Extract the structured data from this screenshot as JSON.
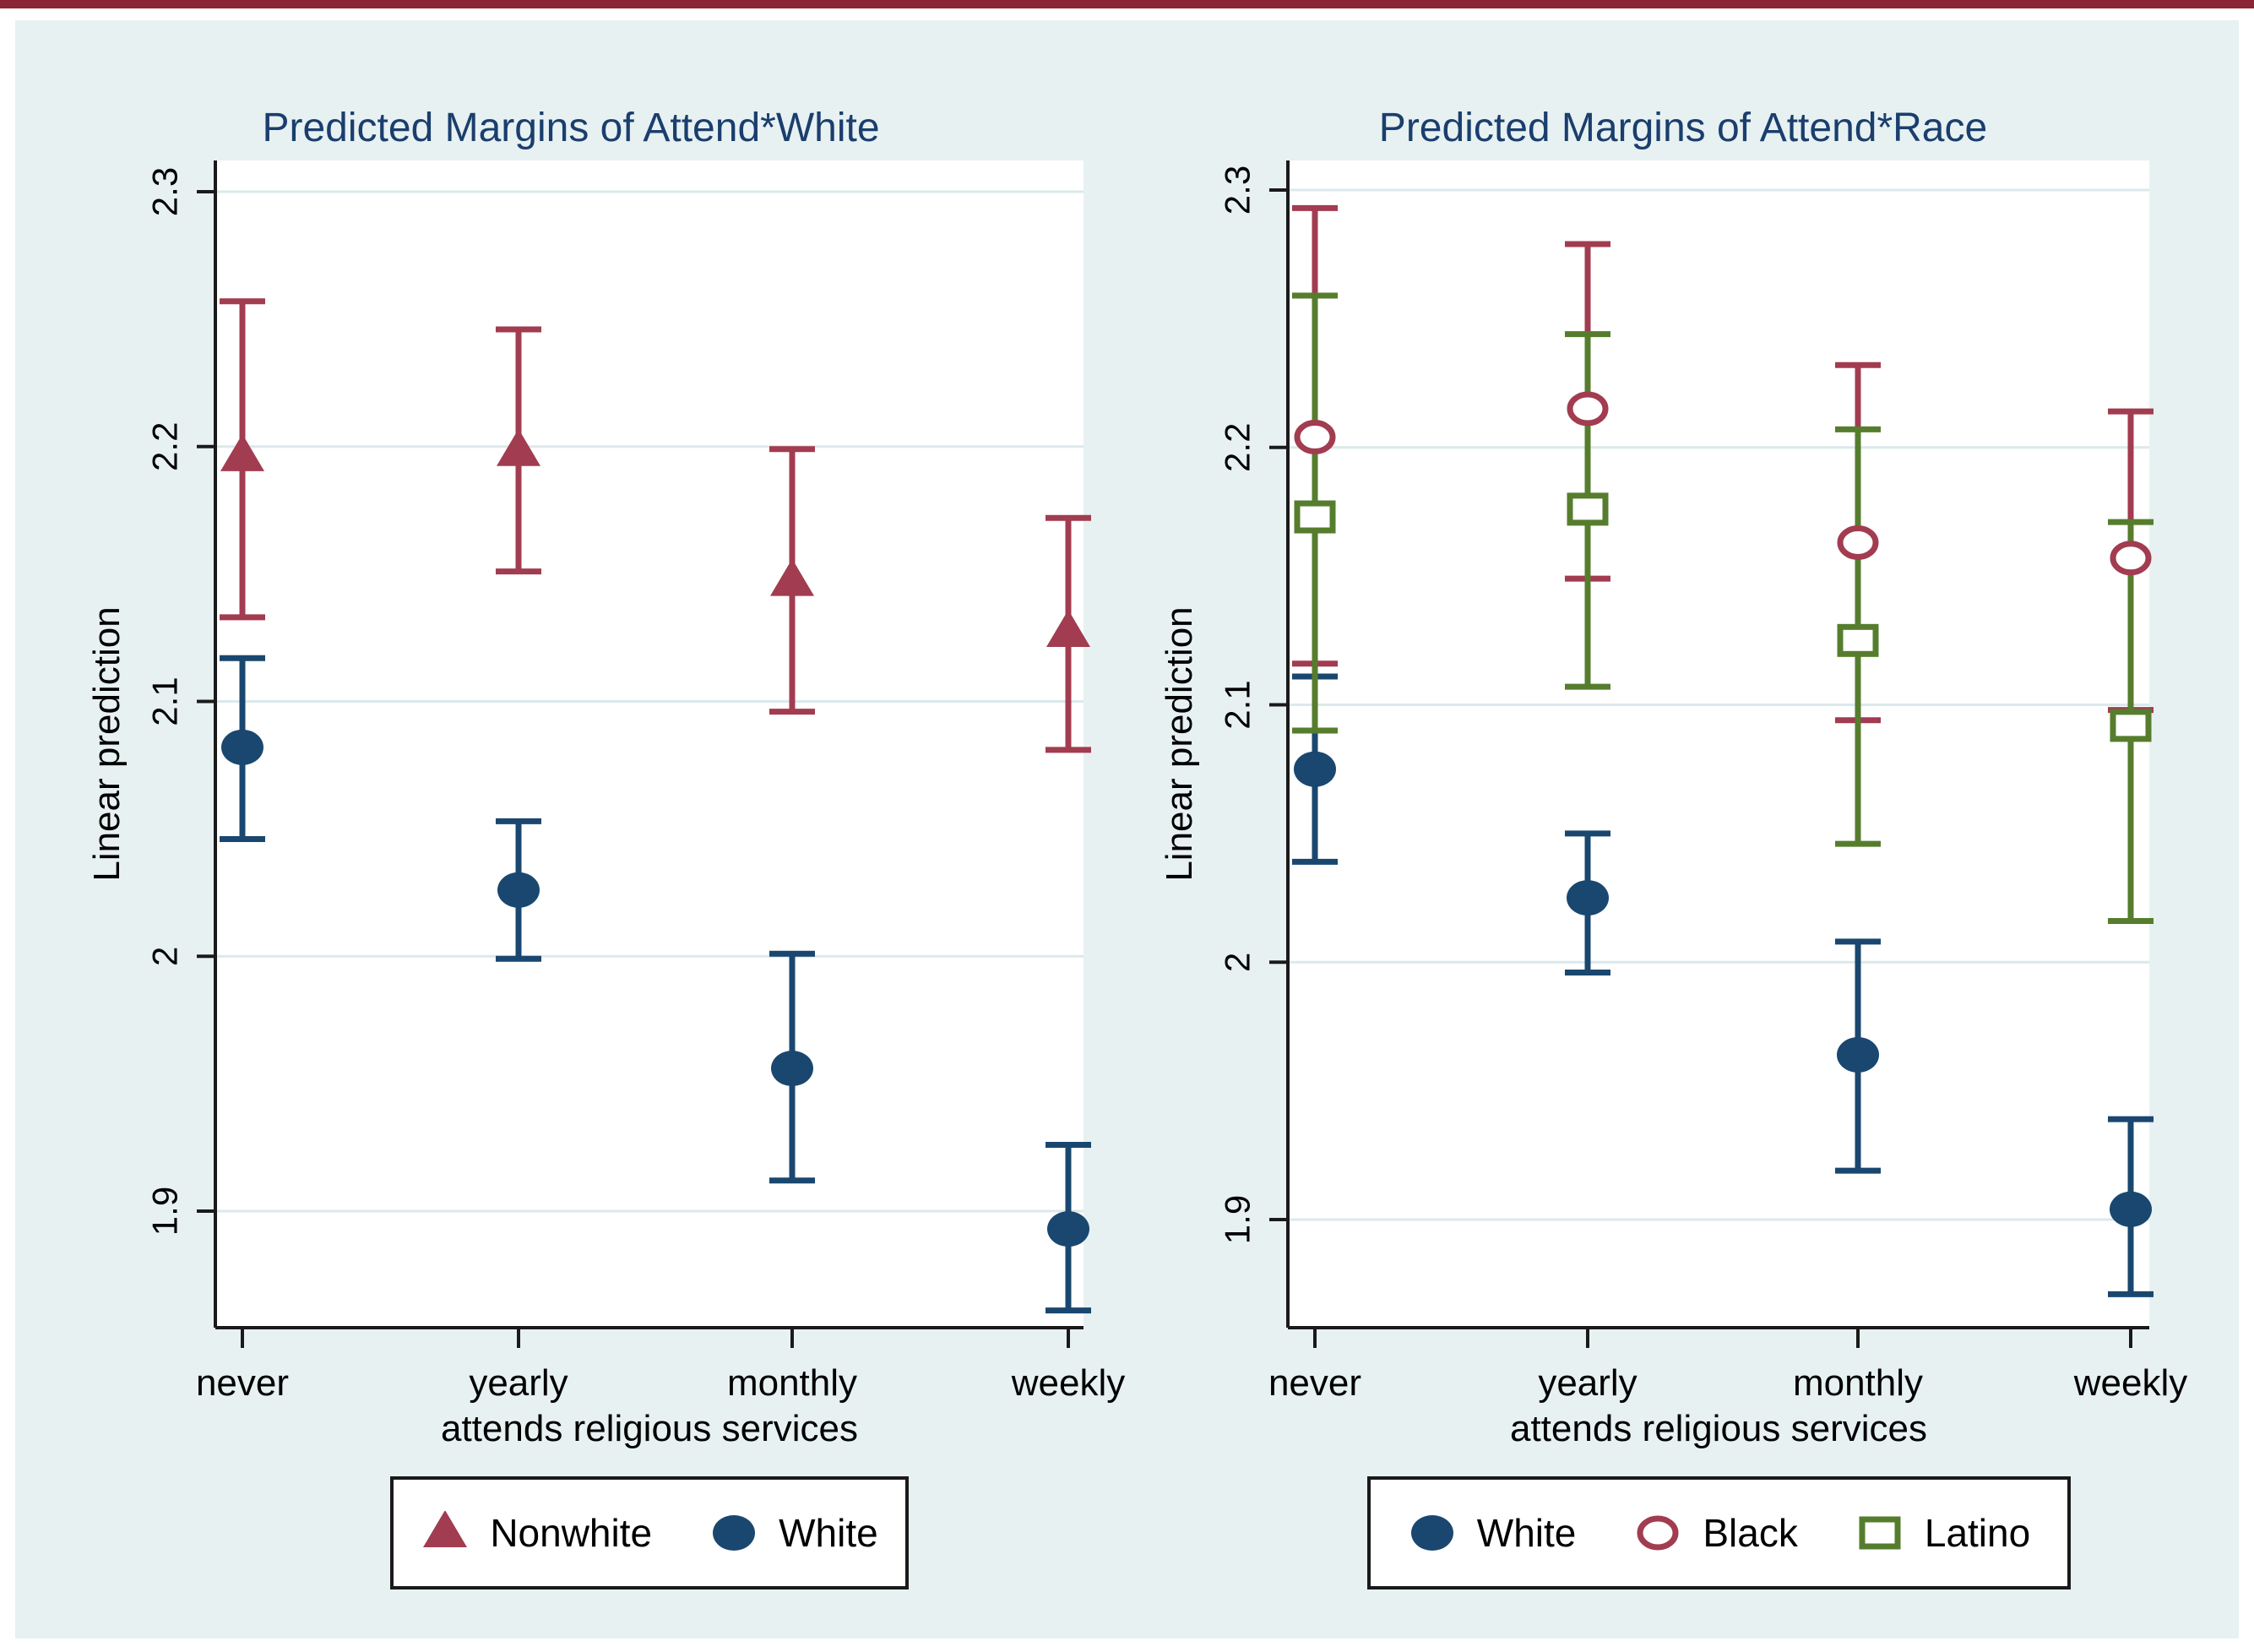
{
  "page": {
    "top_border_color": "#8b2433",
    "background_color": "#e7f1f2",
    "plot_background_color": "#ffffff",
    "gridline_color": "#dbe9ec",
    "axis_color": "#1a1a1a",
    "title_color": "#1a3e6d"
  },
  "chart_data": [
    {
      "type": "scatter",
      "title": "Predicted Margins of Attend*White",
      "xlabel": "attends religious services",
      "ylabel": "Linear prediction",
      "categories": [
        "never",
        "yearly",
        "monthly",
        "weekly"
      ],
      "yticks": {
        "labels": [
          "2.3",
          "2.2",
          "2.1",
          "2",
          "1.9"
        ],
        "values": [
          2.3,
          2.2,
          2.1,
          2.0,
          1.9
        ]
      },
      "ylim": [
        1.855,
        2.312
      ],
      "grid": "horizontal",
      "legend_position": "bottom",
      "series": [
        {
          "name": "Nonwhite",
          "marker": "filled-triangle",
          "color": "#a23c50",
          "values": [
            2.196,
            2.198,
            2.147,
            2.127
          ],
          "ci_low": [
            2.133,
            2.151,
            2.096,
            2.081
          ],
          "ci_high": [
            2.257,
            2.246,
            2.199,
            2.172
          ]
        },
        {
          "name": "White",
          "marker": "filled-circle",
          "color": "#1a476f",
          "values": [
            2.082,
            2.026,
            1.956,
            1.893
          ],
          "ci_low": [
            2.046,
            1.999,
            1.912,
            1.861
          ],
          "ci_high": [
            2.117,
            2.053,
            2.001,
            1.926
          ]
        }
      ]
    },
    {
      "type": "scatter",
      "title": "Predicted Margins of Attend*Race",
      "xlabel": "attends religious services",
      "ylabel": "Linear prediction",
      "categories": [
        "never",
        "yearly",
        "monthly",
        "weekly"
      ],
      "yticks": {
        "labels": [
          "2.3",
          "2.2",
          "2.1",
          "2",
          "1.9"
        ],
        "values": [
          2.3,
          2.2,
          2.1,
          2.0,
          1.9
        ]
      },
      "ylim": [
        1.855,
        2.312
      ],
      "grid": "horizontal",
      "legend_position": "bottom",
      "series": [
        {
          "name": "White",
          "marker": "filled-circle",
          "color": "#1a476f",
          "values": [
            2.075,
            2.025,
            1.964,
            1.904
          ],
          "ci_low": [
            2.039,
            1.996,
            1.919,
            1.871
          ],
          "ci_high": [
            2.111,
            2.05,
            2.008,
            1.939
          ]
        },
        {
          "name": "Black",
          "marker": "hollow-circle",
          "color": "#a23c50",
          "values": [
            2.204,
            2.215,
            2.163,
            2.157
          ],
          "ci_low": [
            2.116,
            2.149,
            2.094,
            2.098
          ],
          "ci_high": [
            2.293,
            2.279,
            2.232,
            2.214
          ]
        },
        {
          "name": "Latino",
          "marker": "hollow-square",
          "color": "#567d2d",
          "values": [
            2.173,
            2.176,
            2.125,
            2.092
          ],
          "ci_low": [
            2.09,
            2.107,
            2.046,
            2.016
          ],
          "ci_high": [
            2.259,
            2.244,
            2.207,
            2.171
          ]
        }
      ]
    }
  ]
}
